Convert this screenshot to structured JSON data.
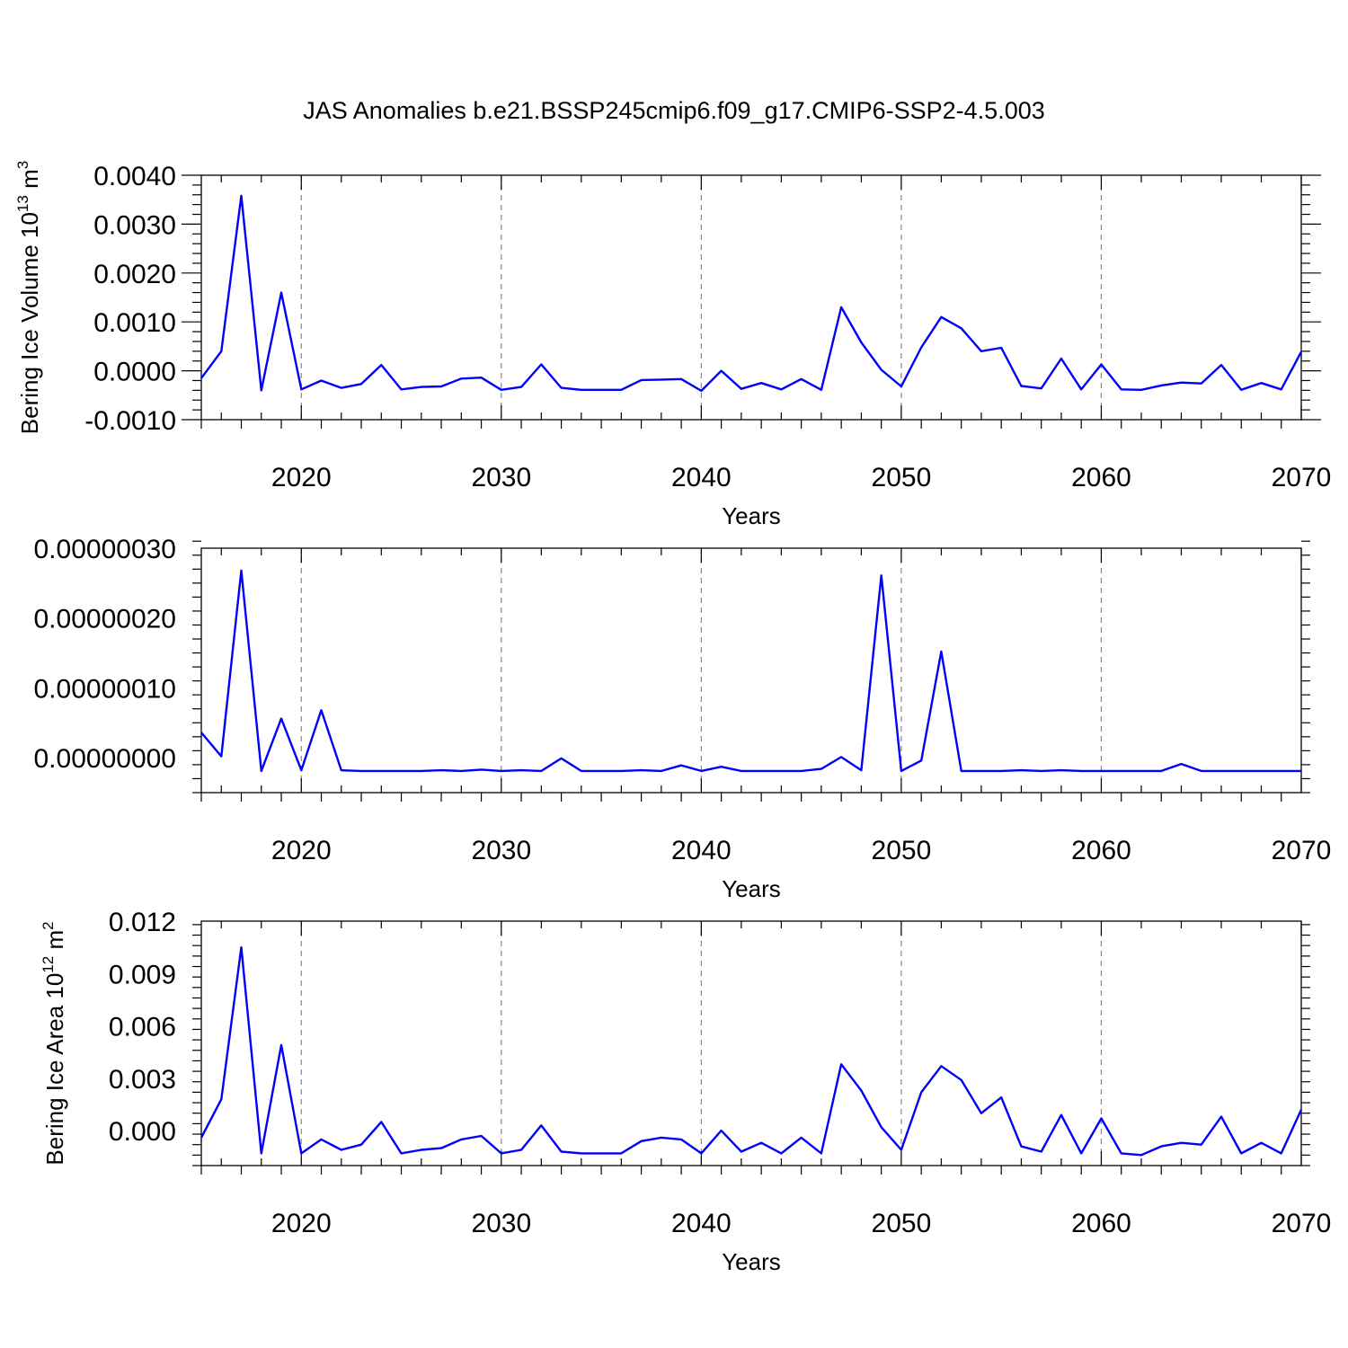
{
  "title": "JAS Anomalies b.e21.BSSP245cmip6.f09_g17.CMIP6-SSP2-4.5.003",
  "line_color": "#0000ff",
  "chart_data": [
    {
      "type": "line",
      "xlabel": "Years",
      "ylabel": "Bering Ice Volume 10",
      "ylabel_exp": "13",
      "ylabel_unit": " m",
      "ylabel_unit_exp": "3",
      "xlim": [
        2015,
        2070
      ],
      "ylim": [
        -0.001,
        0.004
      ],
      "xticks": [
        2020,
        2030,
        2040,
        2050,
        2060,
        2070
      ],
      "yticks": [
        -0.001,
        0.0,
        0.001,
        0.002,
        0.003,
        0.004
      ],
      "ytick_labels": [
        "-0.0010",
        "0.0000",
        "0.0010",
        "0.0020",
        "0.0030",
        "0.0040"
      ],
      "grid": "vertical dashed at major x ticks",
      "x": [
        2015,
        2016,
        2017,
        2018,
        2019,
        2020,
        2021,
        2022,
        2023,
        2024,
        2025,
        2026,
        2027,
        2028,
        2029,
        2030,
        2031,
        2032,
        2033,
        2034,
        2035,
        2036,
        2037,
        2038,
        2039,
        2040,
        2041,
        2042,
        2043,
        2044,
        2045,
        2046,
        2047,
        2048,
        2049,
        2050,
        2051,
        2052,
        2053,
        2054,
        2055,
        2056,
        2057,
        2058,
        2059,
        2060,
        2061,
        2062,
        2063,
        2064,
        2065,
        2066,
        2067,
        2068,
        2069,
        2070
      ],
      "y": [
        -0.00015,
        0.0004,
        0.00358,
        -0.0004,
        0.0016,
        -0.00038,
        -0.0002,
        -0.00035,
        -0.00027,
        0.00012,
        -0.00038,
        -0.00033,
        -0.00032,
        -0.00016,
        -0.00014,
        -0.00039,
        -0.00033,
        0.00013,
        -0.00035,
        -0.00039,
        -0.00039,
        -0.00039,
        -0.00019,
        -0.00018,
        -0.00017,
        -0.00041,
        0.0,
        -0.00037,
        -0.00025,
        -0.00038,
        -0.00017,
        -0.00039,
        0.0013,
        0.00058,
        2e-05,
        -0.00032,
        0.00048,
        0.0011,
        0.00087,
        0.0004,
        0.00047,
        -0.00031,
        -0.00036,
        0.00025,
        -0.00038,
        0.00013,
        -0.00038,
        -0.00039,
        -0.0003,
        -0.00024,
        -0.00026,
        0.00012,
        -0.00039,
        -0.00025,
        -0.00038,
        0.00039
      ]
    },
    {
      "type": "line",
      "xlabel": "Years",
      "ylabel": "",
      "xlim": [
        2015,
        2070
      ],
      "ylim": [
        -5e-08,
        3e-07
      ],
      "xticks": [
        2020,
        2030,
        2040,
        2050,
        2060,
        2070
      ],
      "yticks": [
        0.0,
        1e-07,
        2e-07,
        3e-07
      ],
      "ytick_labels": [
        "0.00000000",
        "0.00000010",
        "0.00000020",
        "0.00000030"
      ],
      "grid": "vertical dashed at major x ticks",
      "x": [
        2015,
        2016,
        2017,
        2018,
        2019,
        2020,
        2021,
        2022,
        2023,
        2024,
        2025,
        2026,
        2027,
        2028,
        2029,
        2030,
        2031,
        2032,
        2033,
        2034,
        2035,
        2036,
        2037,
        2038,
        2039,
        2040,
        2041,
        2042,
        2043,
        2044,
        2045,
        2046,
        2047,
        2048,
        2049,
        2050,
        2051,
        2052,
        2053,
        2054,
        2055,
        2056,
        2057,
        2058,
        2059,
        2060,
        2061,
        2062,
        2063,
        2064,
        2065,
        2066,
        2067,
        2068,
        2069,
        2070
      ],
      "y": [
        3.6e-08,
        2e-09,
        2.68e-07,
        -1.9e-08,
        5.6e-08,
        -1.8e-08,
        6.8e-08,
        -1.8e-08,
        -1.9e-08,
        -1.9e-08,
        -1.9e-08,
        -1.9e-08,
        -1.8e-08,
        -1.9e-08,
        -1.7e-08,
        -1.9e-08,
        -1.8e-08,
        -1.9e-08,
        -1e-09,
        -1.9e-08,
        -1.9e-08,
        -1.9e-08,
        -1.8e-08,
        -1.9e-08,
        -1.1e-08,
        -1.9e-08,
        -1.3e-08,
        -1.9e-08,
        -1.9e-08,
        -1.9e-08,
        -1.9e-08,
        -1.6e-08,
        1e-09,
        -1.8e-08,
        2.61e-07,
        -1.9e-08,
        -4e-09,
        1.52e-07,
        -1.9e-08,
        -1.9e-08,
        -1.9e-08,
        -1.8e-08,
        -1.9e-08,
        -1.8e-08,
        -1.9e-08,
        -1.9e-08,
        -1.9e-08,
        -1.9e-08,
        -1.9e-08,
        -9e-09,
        -1.9e-08,
        -1.9e-08,
        -1.9e-08,
        -1.9e-08,
        -1.9e-08,
        -1.9e-08
      ]
    },
    {
      "type": "line",
      "xlabel": "Years",
      "ylabel": "Bering Ice Area 10",
      "ylabel_exp": "12",
      "ylabel_unit": " m",
      "ylabel_unit_exp": "2",
      "xlim": [
        2015,
        2070
      ],
      "ylim": [
        -0.002,
        0.012
      ],
      "xticks": [
        2020,
        2030,
        2040,
        2050,
        2060,
        2070
      ],
      "yticks": [
        0.0,
        0.003,
        0.006,
        0.009,
        0.012
      ],
      "ytick_labels": [
        "0.000",
        "0.003",
        "0.006",
        "0.009",
        "0.012"
      ],
      "grid": "vertical dashed at major x ticks",
      "x": [
        2015,
        2016,
        2017,
        2018,
        2019,
        2020,
        2021,
        2022,
        2023,
        2024,
        2025,
        2026,
        2027,
        2028,
        2029,
        2030,
        2031,
        2032,
        2033,
        2034,
        2035,
        2036,
        2037,
        2038,
        2039,
        2040,
        2041,
        2042,
        2043,
        2044,
        2045,
        2046,
        2047,
        2048,
        2049,
        2050,
        2051,
        2052,
        2053,
        2054,
        2055,
        2056,
        2057,
        2058,
        2059,
        2060,
        2061,
        2062,
        2063,
        2064,
        2065,
        2066,
        2067,
        2068,
        2069,
        2070
      ],
      "y": [
        -0.0004,
        0.0018,
        0.0105,
        -0.0013,
        0.0049,
        -0.0013,
        -0.0005,
        -0.0011,
        -0.0008,
        0.0005,
        -0.0013,
        -0.0011,
        -0.001,
        -0.0005,
        -0.0003,
        -0.0013,
        -0.0011,
        0.0003,
        -0.0012,
        -0.0013,
        -0.0013,
        -0.0013,
        -0.0006,
        -0.0004,
        -0.0005,
        -0.0013,
        0.0,
        -0.0012,
        -0.0007,
        -0.0013,
        -0.0004,
        -0.0013,
        0.0038,
        0.0023,
        0.0002,
        -0.0011,
        0.0022,
        0.0037,
        0.0029,
        0.001,
        0.0019,
        -0.0009,
        -0.0012,
        0.0009,
        -0.0013,
        0.0007,
        -0.0013,
        -0.0014,
        -0.0009,
        -0.0007,
        -0.0008,
        0.0008,
        -0.0013,
        -0.0007,
        -0.0013,
        0.0012
      ]
    }
  ]
}
